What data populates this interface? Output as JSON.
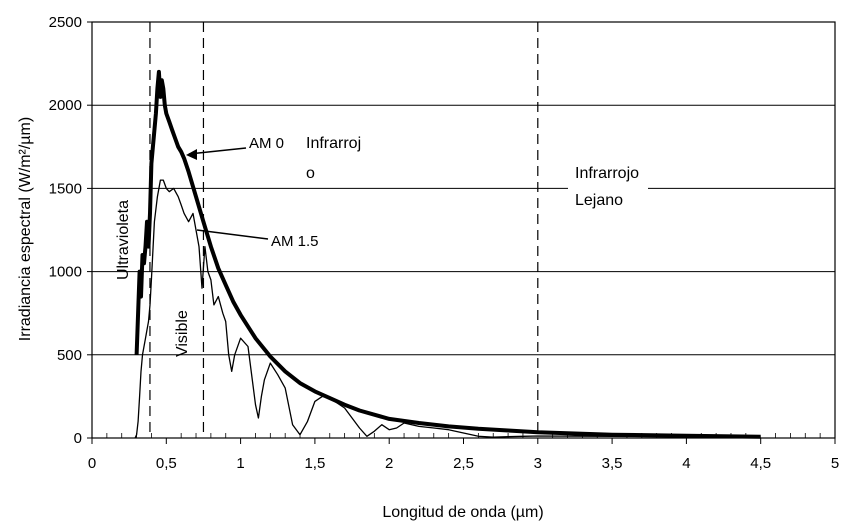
{
  "chart_data": {
    "type": "line",
    "title": "",
    "xlabel": "Longitud de onda (µm)",
    "ylabel": "Irradiancia espectral (W/m²/µm)",
    "xlim": [
      0,
      5
    ],
    "ylim": [
      0,
      2500
    ],
    "x_ticks": [
      0,
      0.5,
      1,
      1.5,
      2,
      2.5,
      3,
      3.5,
      4,
      4.5,
      5
    ],
    "x_tick_labels": [
      "0",
      "0,5",
      "1",
      "1,5",
      "2",
      "2,5",
      "3",
      "3,5",
      "4",
      "4,5",
      "5"
    ],
    "y_ticks": [
      0,
      500,
      1000,
      1500,
      2000,
      2500
    ],
    "y_tick_labels": [
      "0",
      "500",
      "1000",
      "1500",
      "2000",
      "2500"
    ],
    "grid": "horizontal",
    "legend": "none",
    "series": [
      {
        "name": "AM 0",
        "style": "thick",
        "x": [
          0.3,
          0.32,
          0.33,
          0.34,
          0.35,
          0.36,
          0.37,
          0.38,
          0.39,
          0.4,
          0.41,
          0.42,
          0.43,
          0.44,
          0.45,
          0.46,
          0.47,
          0.48,
          0.49,
          0.5,
          0.52,
          0.54,
          0.56,
          0.58,
          0.6,
          0.62,
          0.65,
          0.7,
          0.75,
          0.8,
          0.85,
          0.9,
          0.95,
          1.0,
          1.1,
          1.2,
          1.3,
          1.4,
          1.5,
          1.6,
          1.7,
          1.8,
          1.9,
          2.0,
          2.2,
          2.4,
          2.6,
          2.8,
          3.0,
          3.5,
          4.0,
          4.5
        ],
        "y": [
          500,
          1000,
          850,
          1100,
          1050,
          1150,
          1300,
          1150,
          1350,
          1650,
          1750,
          1850,
          1950,
          2100,
          2200,
          2050,
          2150,
          2100,
          2000,
          1950,
          1900,
          1850,
          1800,
          1750,
          1720,
          1680,
          1600,
          1450,
          1300,
          1150,
          1020,
          920,
          820,
          740,
          600,
          490,
          400,
          330,
          280,
          240,
          200,
          165,
          140,
          115,
          90,
          70,
          55,
          45,
          35,
          20,
          13,
          8
        ]
      },
      {
        "name": "AM 1.5",
        "style": "thin",
        "x": [
          0.29,
          0.3,
          0.31,
          0.32,
          0.33,
          0.34,
          0.35,
          0.36,
          0.37,
          0.38,
          0.39,
          0.4,
          0.42,
          0.44,
          0.46,
          0.48,
          0.5,
          0.52,
          0.55,
          0.58,
          0.6,
          0.62,
          0.65,
          0.68,
          0.7,
          0.72,
          0.74,
          0.76,
          0.78,
          0.8,
          0.82,
          0.85,
          0.88,
          0.9,
          0.92,
          0.94,
          0.96,
          1.0,
          1.05,
          1.1,
          1.12,
          1.14,
          1.16,
          1.2,
          1.25,
          1.3,
          1.35,
          1.4,
          1.45,
          1.5,
          1.55,
          1.6,
          1.7,
          1.8,
          1.85,
          1.9,
          1.95,
          2.0,
          2.05,
          2.1,
          2.2,
          2.3,
          2.4,
          2.5,
          2.6,
          2.7,
          2.8,
          2.9,
          3.0,
          3.5,
          4.0,
          4.5
        ],
        "y": [
          0,
          20,
          100,
          250,
          400,
          500,
          550,
          600,
          650,
          700,
          800,
          950,
          1300,
          1450,
          1550,
          1550,
          1500,
          1480,
          1500,
          1450,
          1400,
          1350,
          1300,
          1350,
          1250,
          1150,
          900,
          1150,
          1000,
          950,
          800,
          850,
          750,
          700,
          500,
          400,
          500,
          600,
          550,
          200,
          120,
          250,
          350,
          450,
          380,
          300,
          80,
          20,
          100,
          220,
          250,
          240,
          180,
          60,
          10,
          40,
          80,
          50,
          60,
          90,
          70,
          60,
          50,
          30,
          10,
          5,
          8,
          10,
          12,
          10,
          8,
          5
        ]
      }
    ],
    "annotations": [
      {
        "text": "AM 0",
        "points_to": "AM 0"
      },
      {
        "text": "AM 1.5",
        "points_to": "AM 1.5"
      }
    ],
    "regions": [
      {
        "label": "Ultravioleta",
        "boundary_x": 0.39
      },
      {
        "label": "Visible",
        "boundary_x": 0.75
      },
      {
        "label_lines": [
          "Infrarroj",
          "o"
        ]
      },
      {
        "label_lines": [
          "Infrarrojo",
          "Lejano"
        ],
        "boundary_x": 3.0
      }
    ]
  }
}
